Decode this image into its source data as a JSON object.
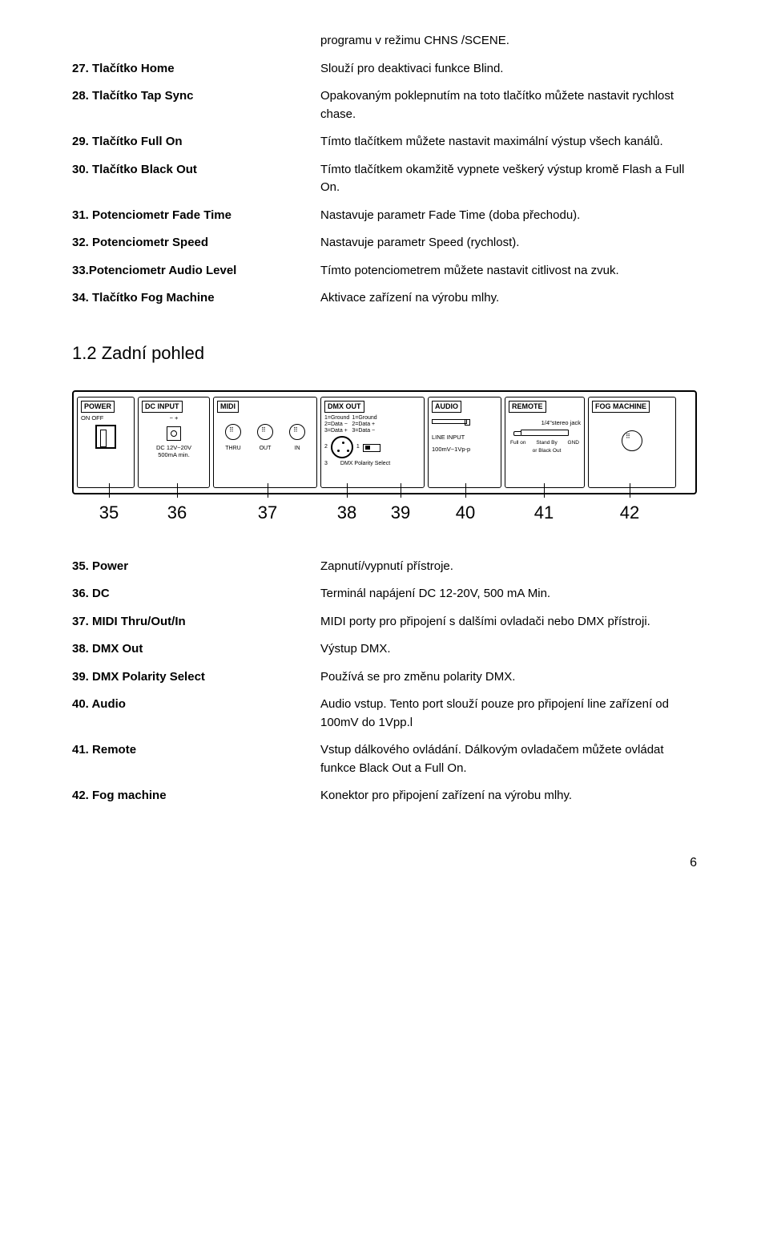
{
  "intro_desc": "programu v režimu CHNS /SCENE.",
  "defs1": [
    {
      "label": "27. Tlačítko Home",
      "desc": "Slouží pro deaktivaci funkce Blind."
    },
    {
      "label": "28. Tlačítko Tap Sync",
      "desc": "Opakovaným poklepnutím na toto tlačítko můžete nastavit rychlost chase."
    },
    {
      "label": "29. Tlačítko Full On",
      "desc": "Tímto tlačítkem můžete nastavit maximální výstup všech kanálů."
    },
    {
      "label": "30. Tlačítko Black Out",
      "desc": "Tímto tlačítkem okamžitě vypnete veškerý výstup kromě Flash a Full On."
    },
    {
      "label": "31. Potenciometr Fade Time",
      "desc": "Nastavuje parametr Fade Time (doba přechodu)."
    },
    {
      "label": "32. Potenciometr Speed",
      "desc": "Nastavuje parametr Speed (rychlost)."
    },
    {
      "label": "33.Potenciometr Audio Level",
      "desc": "Tímto potenciometrem můžete nastavit citlivost na zvuk."
    },
    {
      "label": "34. Tlačítko Fog Machine",
      "desc": "Aktivace zařízení na výrobu mlhy."
    }
  ],
  "section_heading": "1.2    Zadní pohled",
  "diagram": {
    "panels": {
      "power": {
        "title": "POWER",
        "onoff": "ON  OFF"
      },
      "dc": {
        "title": "DC INPUT",
        "polarity": "−    +",
        "spec": "DC 12V~20V\n500mA min."
      },
      "midi": {
        "title": "MIDI",
        "labels": [
          "THRU",
          "OUT",
          "IN"
        ]
      },
      "dmx": {
        "title": "DMX OUT",
        "pins_a": "1=Ground\n2=Data −\n3=Data +",
        "pins_b": "1=Ground\n2=Data +\n3=Data −",
        "sel": "DMX Polarity Select"
      },
      "audio": {
        "title": "AUDIO",
        "line": "LINE INPUT",
        "spec": "100mV~1Vp-p"
      },
      "remote": {
        "title": "REMOTE",
        "jack": "1/4\"stereo jack",
        "l1": "Full on",
        "l2": "Stand By\nor Black Out",
        "l3": "GND"
      },
      "fog": {
        "title": "FOG MACHINE"
      }
    },
    "callouts": [
      "35",
      "36",
      "37",
      "38",
      "39",
      "40",
      "41",
      "42"
    ],
    "callout_widths": [
      76,
      94,
      132,
      66,
      68,
      94,
      102,
      112
    ]
  },
  "defs2": [
    {
      "label": "35. Power",
      "desc": "Zapnutí/vypnutí přístroje."
    },
    {
      "label": "36. DC",
      "desc": "Terminál napájení DC 12-20V, 500 mA Min."
    },
    {
      "label": "37. MIDI Thru/Out/In",
      "desc": "MIDI porty pro připojení s dalšími ovladači nebo DMX přístroji."
    },
    {
      "label": "38. DMX Out",
      "desc": "Výstup DMX."
    },
    {
      "label": "39. DMX Polarity Select",
      "desc": "Používá se pro změnu polarity DMX."
    },
    {
      "label": "40. Audio",
      "desc": "Audio vstup. Tento port slouží pouze pro připojení line zařízení od 100mV do 1Vpp.l"
    },
    {
      "label": "41. Remote",
      "desc": "Vstup dálkového ovládání. Dálkovým ovladačem můžete ovládat funkce Black Out a Full On."
    },
    {
      "label": "42. Fog machine",
      "desc": "Konektor pro připojení zařízení na výrobu mlhy."
    }
  ],
  "page_number": "6"
}
